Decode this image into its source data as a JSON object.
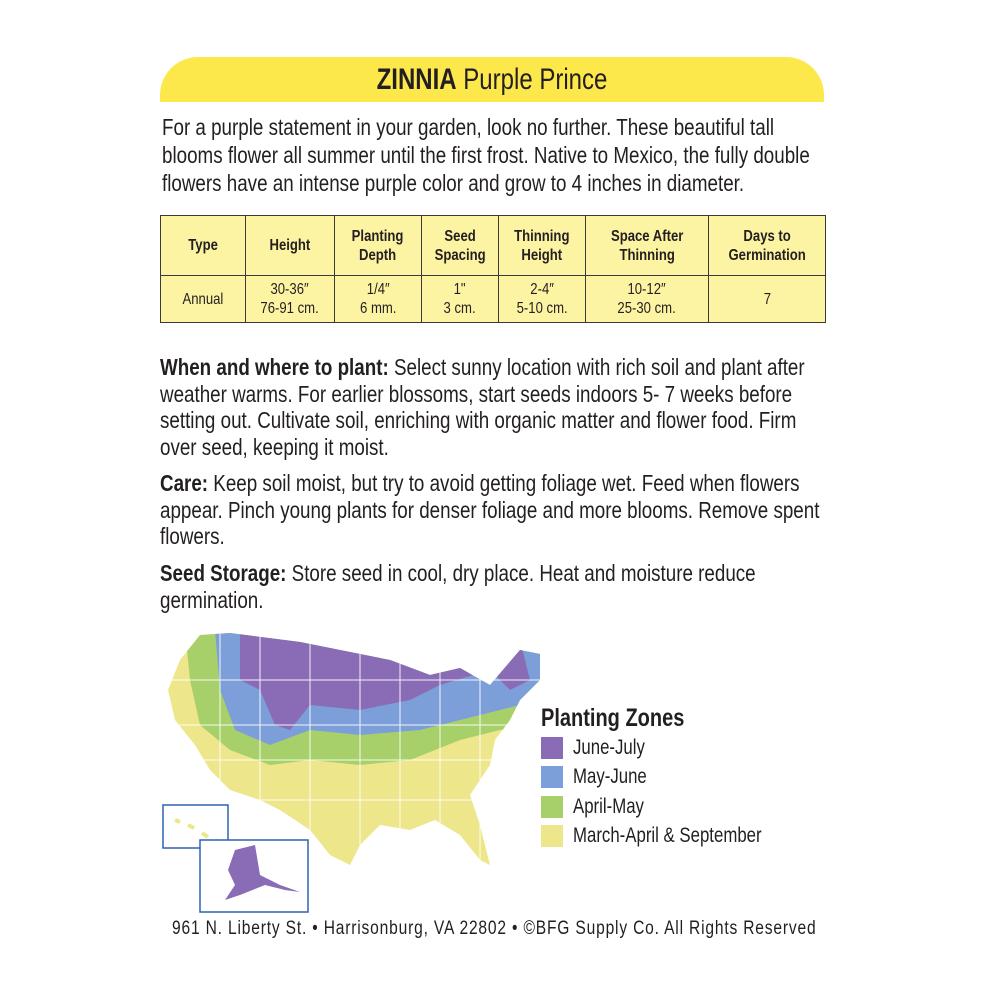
{
  "title": {
    "bold": "ZINNIA",
    "rest": " Purple Prince"
  },
  "intro": "For a purple statement in your garden, look no further.  These beautiful tall blooms flower all summer until the first frost.  Native to Mexico, the fully double flowers have an intense purple color and grow to 4 inches in diameter.",
  "table": {
    "headers": [
      [
        "Type",
        ""
      ],
      [
        "Height",
        ""
      ],
      [
        "Planting",
        "Depth"
      ],
      [
        "Seed",
        "Spacing"
      ],
      [
        "Thinning",
        "Height"
      ],
      [
        "Space After",
        "Thinning"
      ],
      [
        "Days to",
        "Germination"
      ]
    ],
    "row": [
      [
        "Annual",
        ""
      ],
      [
        "30-36″",
        "76-91 cm."
      ],
      [
        "1/4″",
        "6 mm."
      ],
      [
        "1\"",
        "3 cm."
      ],
      [
        "2-4″",
        "5-10 cm."
      ],
      [
        "10-12″",
        "25-30 cm."
      ],
      [
        "7",
        ""
      ]
    ]
  },
  "sections": [
    {
      "label": "When and where to plant:",
      "text": " Select sunny location with rich soil and plant after weather warms. For earlier blossoms, start seeds indoors 5- 7 weeks before setting out. Cultivate soil, enriching with organic matter and flower food. Firm over seed, keeping it moist."
    },
    {
      "label": "Care:",
      "text": " Keep soil moist, but try to avoid getting foliage wet. Feed when flowers appear. Pinch young plants for denser foliage and more blooms. Remove spent flowers."
    },
    {
      "label": "Seed Storage:",
      "text": " Store seed in cool, dry place. Heat and moisture reduce germination."
    }
  ],
  "legend": {
    "title": "Planting Zones",
    "items": [
      {
        "label": "June-July",
        "color": "#8a6bb6"
      },
      {
        "label": "May-June",
        "color": "#7d9fd9"
      },
      {
        "label": "April-May",
        "color": "#a7d06b"
      },
      {
        "label": "March-April & September",
        "color": "#ede68a"
      }
    ]
  },
  "colors": {
    "title_bar": "#fde84c",
    "table_bg": "#fdf4a3",
    "inset_border": "#2f62b0"
  },
  "footer": "961 N. Liberty St. • Harrisonburg, VA 22802 • ©BFG Supply Co. All Rights Reserved"
}
